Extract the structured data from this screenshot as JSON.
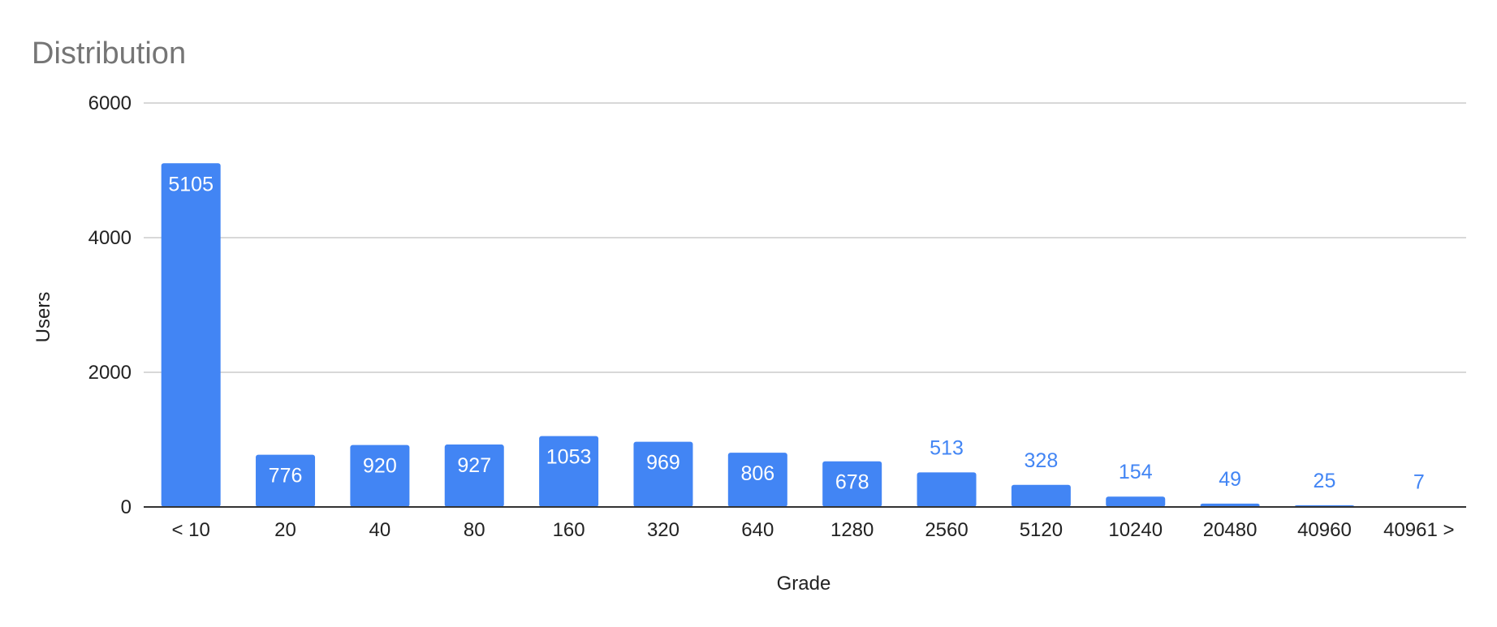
{
  "chart_data": {
    "type": "bar",
    "title": "Distribution",
    "xlabel": "Grade",
    "ylabel": "Users",
    "categories": [
      "< 10",
      "20",
      "40",
      "80",
      "160",
      "320",
      "640",
      "1280",
      "2560",
      "5120",
      "10240",
      "20480",
      "40960",
      "40961 >"
    ],
    "values": [
      5105,
      776,
      920,
      927,
      1053,
      969,
      806,
      678,
      513,
      328,
      154,
      49,
      25,
      7
    ],
    "ylim": [
      0,
      6000
    ],
    "yticks": [
      0,
      2000,
      4000,
      6000
    ],
    "grid": true,
    "legend": "none",
    "colors": {
      "bar": "#4285f4",
      "inside_label": "#ffffff",
      "outside_label": "#4285f4"
    }
  }
}
